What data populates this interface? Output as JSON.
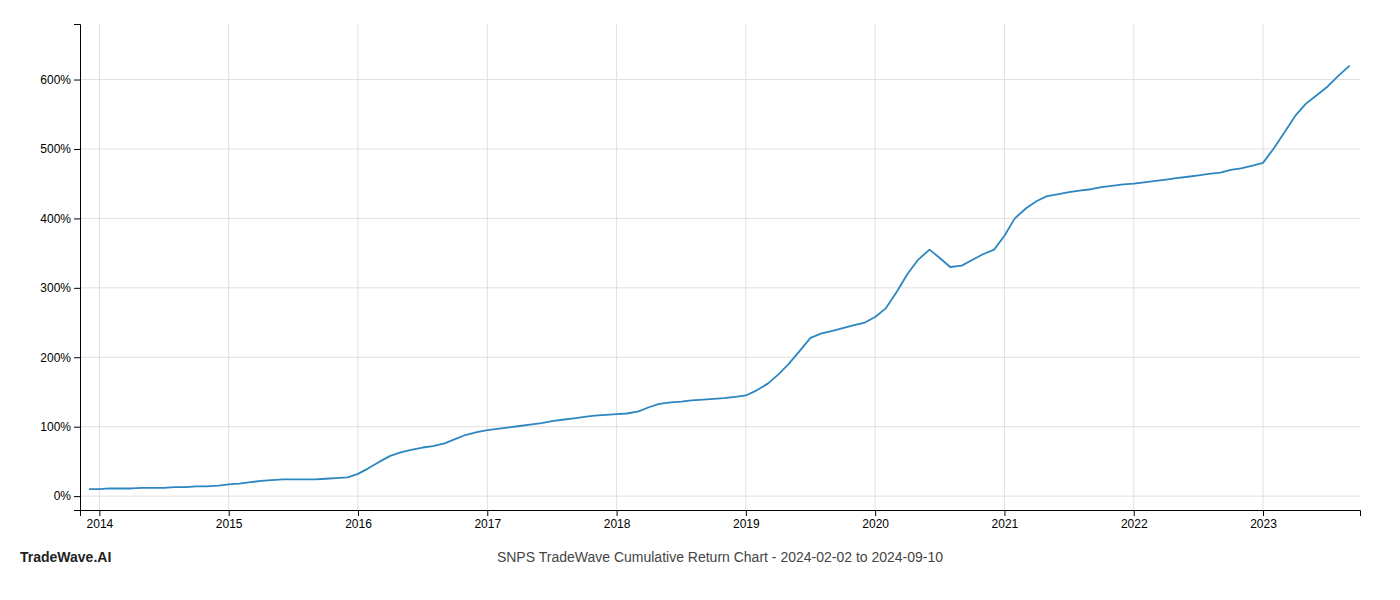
{
  "chart_data": {
    "type": "line",
    "title": "SNPS TradeWave Cumulative Return Chart - 2024-02-02 to 2024-09-10",
    "annotations": [
      "TradeWave.AI"
    ],
    "color": "#2e86c1",
    "x": [
      2013.92,
      2014.0,
      2014.08,
      2014.17,
      2014.25,
      2014.33,
      2014.42,
      2014.5,
      2014.58,
      2014.67,
      2014.75,
      2014.83,
      2014.92,
      2015.0,
      2015.08,
      2015.17,
      2015.25,
      2015.33,
      2015.42,
      2015.5,
      2015.58,
      2015.67,
      2015.75,
      2015.83,
      2015.92,
      2016.0,
      2016.08,
      2016.17,
      2016.25,
      2016.33,
      2016.42,
      2016.5,
      2016.58,
      2016.67,
      2016.75,
      2016.83,
      2016.92,
      2017.0,
      2017.08,
      2017.17,
      2017.25,
      2017.33,
      2017.42,
      2017.5,
      2017.58,
      2017.67,
      2017.75,
      2017.83,
      2017.92,
      2018.0,
      2018.08,
      2018.17,
      2018.25,
      2018.33,
      2018.42,
      2018.5,
      2018.58,
      2018.67,
      2018.75,
      2018.83,
      2018.92,
      2019.0,
      2019.08,
      2019.17,
      2019.25,
      2019.33,
      2019.42,
      2019.5,
      2019.58,
      2019.67,
      2019.75,
      2019.83,
      2019.92,
      2020.0,
      2020.08,
      2020.17,
      2020.25,
      2020.33,
      2020.42,
      2020.5,
      2020.58,
      2020.67,
      2020.75,
      2020.83,
      2020.92,
      2021.0,
      2021.08,
      2021.17,
      2021.25,
      2021.33,
      2021.42,
      2021.5,
      2021.58,
      2021.67,
      2021.75,
      2021.83,
      2021.92,
      2022.0,
      2022.08,
      2022.17,
      2022.25,
      2022.33,
      2022.42,
      2022.5,
      2022.58,
      2022.67,
      2022.75,
      2022.83,
      2022.92,
      2023.0,
      2023.08,
      2023.17,
      2023.25,
      2023.33,
      2023.42,
      2023.5,
      2023.58,
      2023.67
    ],
    "values": [
      10,
      10,
      11,
      11,
      11,
      12,
      12,
      12,
      13,
      13,
      14,
      14,
      15,
      17,
      18,
      20,
      22,
      23,
      24,
      24,
      24,
      24,
      25,
      26,
      27,
      32,
      40,
      50,
      58,
      63,
      67,
      70,
      72,
      76,
      82,
      88,
      92,
      95,
      97,
      99,
      101,
      103,
      105,
      108,
      110,
      112,
      114,
      116,
      117,
      118,
      119,
      122,
      128,
      133,
      135,
      136,
      138,
      139,
      140,
      141,
      143,
      145,
      152,
      162,
      175,
      190,
      210,
      228,
      234,
      238,
      242,
      246,
      250,
      258,
      270,
      295,
      320,
      340,
      355,
      343,
      330,
      332,
      340,
      348,
      355,
      375,
      400,
      415,
      425,
      432,
      435,
      438,
      440,
      442,
      445,
      447,
      449,
      450,
      452,
      454,
      456,
      458,
      460,
      462,
      464,
      466,
      470,
      472,
      476,
      480,
      500,
      525,
      548,
      565,
      578,
      590,
      605,
      620
    ],
    "xlim": [
      2013.85,
      2023.75
    ],
    "ylim": [
      -20,
      680
    ],
    "xticks": [
      2014,
      2015,
      2016,
      2017,
      2018,
      2019,
      2020,
      2021,
      2022,
      2023
    ],
    "yticks": [
      {
        "value": 0,
        "label": "0%"
      },
      {
        "value": 100,
        "label": "100%"
      },
      {
        "value": 200,
        "label": "200%"
      },
      {
        "value": 300,
        "label": "300%"
      },
      {
        "value": 400,
        "label": "400%"
      },
      {
        "value": 500,
        "label": "500%"
      },
      {
        "value": 600,
        "label": "600%"
      }
    ],
    "grid": true
  }
}
